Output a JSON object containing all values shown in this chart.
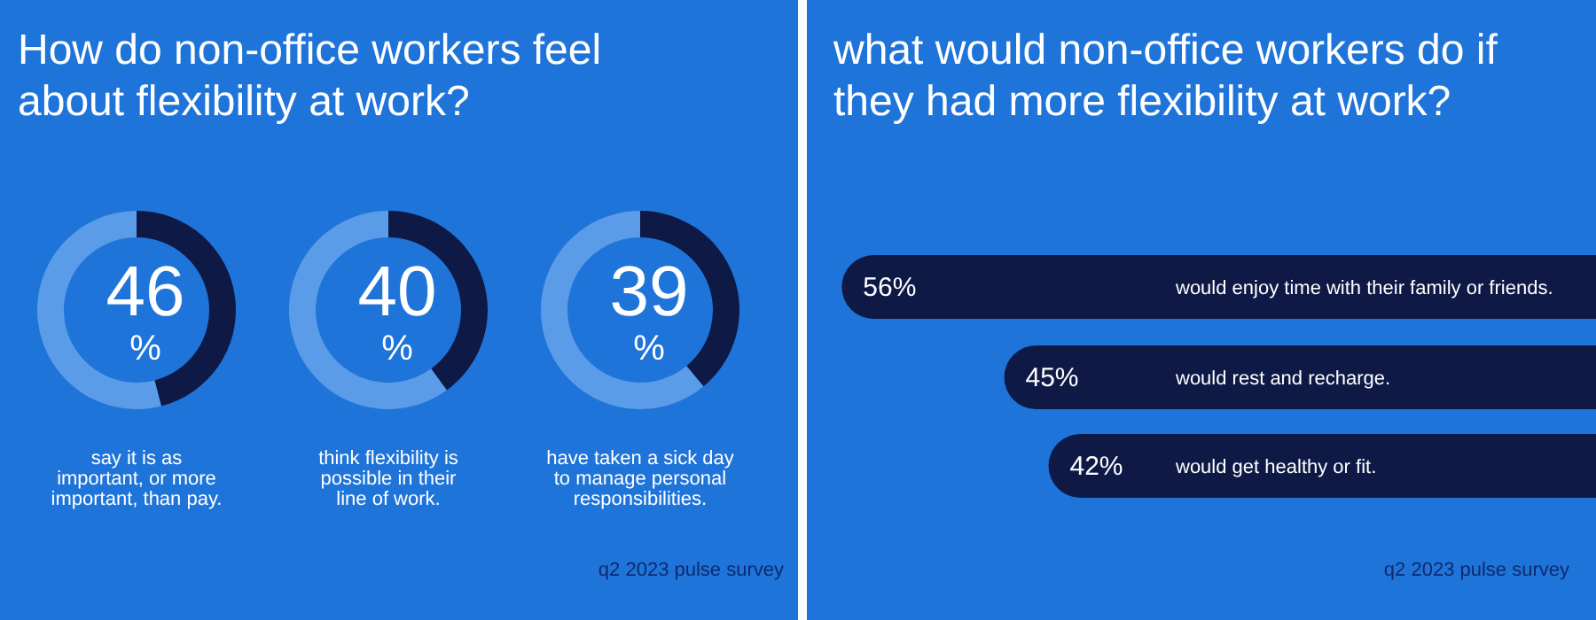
{
  "chart_data": [
    {
      "type": "donut",
      "title": "How do non-office workers feel about flexibility at work?",
      "xlabel": "say it is as important, or more important, than pay.",
      "categories": [
        null,
        null
      ],
      "values": [
        46,
        54
      ],
      "colors": [
        "#0e1a45",
        "#5b9ce8"
      ],
      "value_labels": [
        "46 %",
        null
      ]
    },
    {
      "type": "donut",
      "xlabel": "think flexibility is possible in their line of work.",
      "categories": [
        null,
        null
      ],
      "values": [
        40,
        60
      ],
      "colors": [
        "#0e1a45",
        "#5b9ce8"
      ],
      "value_labels": [
        "40 %",
        null
      ]
    },
    {
      "type": "donut",
      "xlabel": "have taken a sick day to manage personal responsibilities.",
      "categories": [
        null,
        null
      ],
      "values": [
        39,
        61
      ],
      "colors": [
        "#0e1a45",
        "#5b9ce8"
      ],
      "value_labels": [
        "39 %",
        null
      ],
      "annotations": [
        "q2 2023 pulse survey"
      ]
    },
    {
      "type": "bar",
      "orientation": "horizontal",
      "title": "what would non-office workers do if they had more flexibility at work?",
      "categories": [
        "would enjoy time with their family or friends.",
        "would rest and recharge.",
        "would get healthy or fit."
      ],
      "values": [
        56,
        45,
        42
      ],
      "color": "#0e1a45",
      "xlim": [
        58,
        0
      ],
      "value_labels": [
        "56%",
        "45%",
        "42%"
      ],
      "annotations": [
        "q2 2023 pulse survey"
      ]
    }
  ]
}
